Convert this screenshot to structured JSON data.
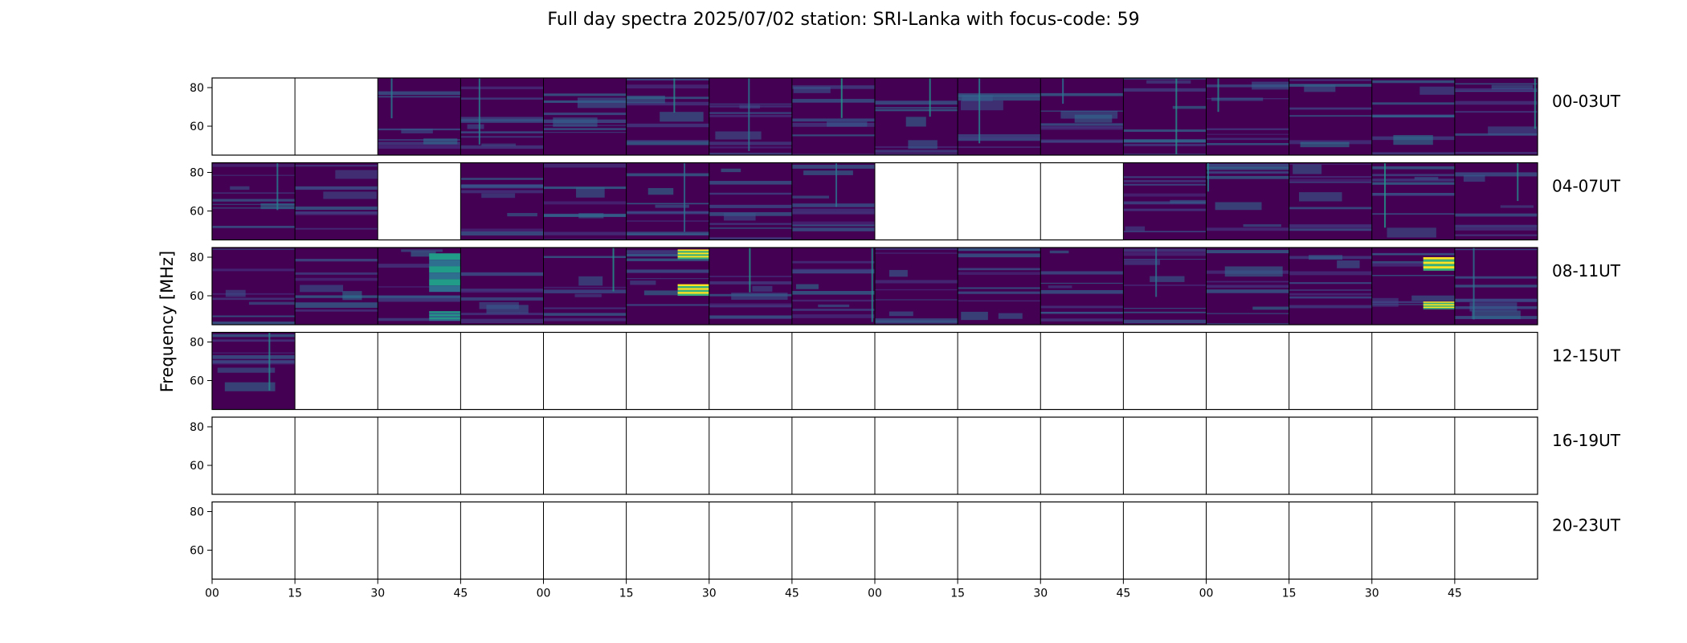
{
  "chart_data": {
    "type": "heatmap",
    "title": "Full day spectra 2025/07/02 station: SRI-Lanka with focus-code: 59",
    "ylabel": "Frequency [MHz]",
    "xlabel": "",
    "y_ticks": [
      80,
      60
    ],
    "ylim": [
      45,
      85
    ],
    "x_tick_labels": [
      "00",
      "15",
      "30",
      "45",
      "00",
      "15",
      "30",
      "45",
      "00",
      "15",
      "30",
      "45",
      "00",
      "15",
      "30",
      "45"
    ],
    "colormap": "viridis",
    "colors": {
      "background": "#440154",
      "axes": "#000000",
      "missing": "#ffffff"
    },
    "panels_per_row": 16,
    "rows": [
      {
        "label": "00-03UT",
        "available": [
          0,
          0,
          1,
          1,
          1,
          1,
          1,
          1,
          1,
          1,
          1,
          1,
          1,
          1,
          1,
          1
        ]
      },
      {
        "label": "04-07UT",
        "available": [
          1,
          1,
          0,
          1,
          1,
          1,
          1,
          1,
          0,
          0,
          0,
          1,
          1,
          1,
          1,
          1
        ]
      },
      {
        "label": "08-11UT",
        "available": [
          1,
          1,
          1,
          1,
          1,
          1,
          1,
          1,
          1,
          1,
          1,
          1,
          1,
          1,
          1,
          1
        ]
      },
      {
        "label": "12-15UT",
        "available": [
          1,
          0,
          0,
          0,
          0,
          0,
          0,
          0,
          0,
          0,
          0,
          0,
          0,
          0,
          0,
          0
        ]
      },
      {
        "label": "16-19UT",
        "available": [
          0,
          0,
          0,
          0,
          0,
          0,
          0,
          0,
          0,
          0,
          0,
          0,
          0,
          0,
          0,
          0
        ]
      },
      {
        "label": "20-23UT",
        "available": [
          0,
          0,
          0,
          0,
          0,
          0,
          0,
          0,
          0,
          0,
          0,
          0,
          0,
          0,
          0,
          0
        ]
      }
    ],
    "bursts": [
      {
        "row": 2,
        "panel": 5,
        "level": 1.0,
        "freq_ranges": [
          [
            79,
            84
          ],
          [
            60,
            66
          ]
        ]
      },
      {
        "row": 2,
        "panel": 14,
        "level": 1.0,
        "freq_ranges": [
          [
            73,
            80
          ],
          [
            53,
            57
          ]
        ]
      },
      {
        "row": 2,
        "panel": 2,
        "level": 0.55,
        "freq_ranges": [
          [
            47,
            52
          ],
          [
            62,
            82
          ]
        ]
      }
    ]
  }
}
